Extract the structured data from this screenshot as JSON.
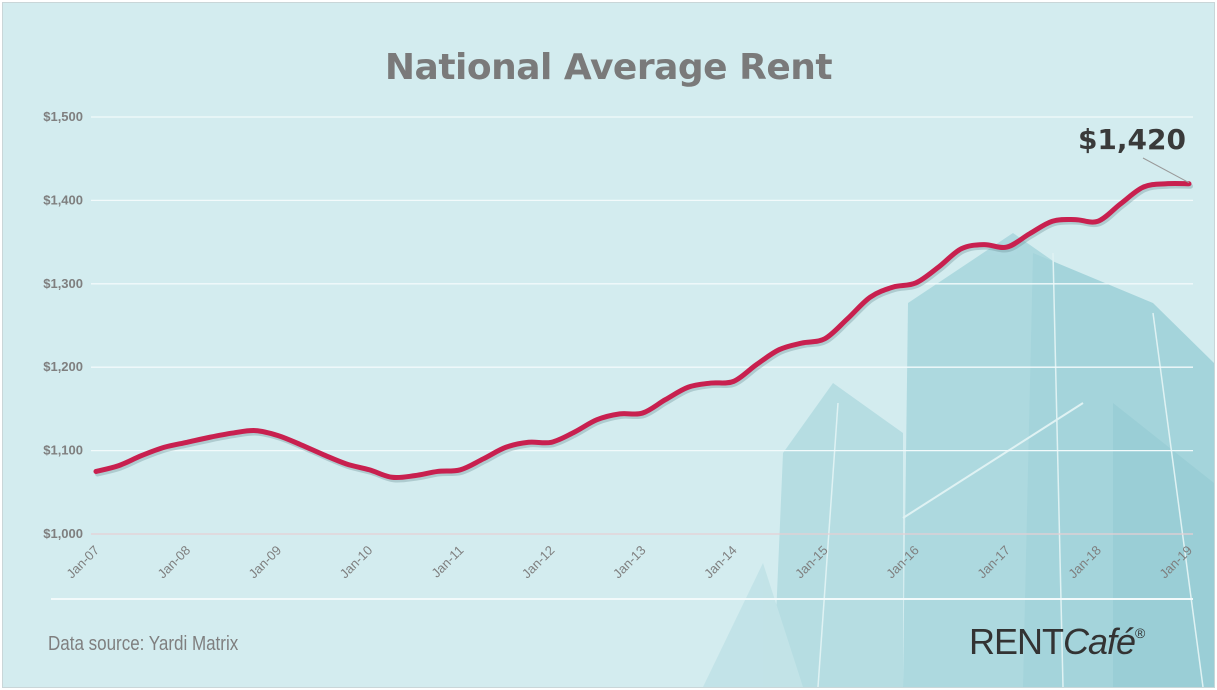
{
  "chart_data": {
    "type": "line",
    "title": "National Average Rent",
    "xlabel": "",
    "ylabel": "",
    "ylim": [
      1000,
      1500
    ],
    "yticks": [
      "$1,000",
      "$1,100",
      "$1,200",
      "$1,300",
      "$1,400",
      "$1,500"
    ],
    "ytick_values": [
      1000,
      1100,
      1200,
      1300,
      1400,
      1500
    ],
    "xticks": [
      "Jan-07",
      "Jan-08",
      "Jan-09",
      "Jan-10",
      "Jan-11",
      "Jan-12",
      "Jan-13",
      "Jan-14",
      "Jan-15",
      "Jan-16",
      "Jan-17",
      "Jan-18",
      "Jan-19"
    ],
    "grid": true,
    "line_color": "#c8204f",
    "x": [
      "Jan-07",
      "Apr-07",
      "Jul-07",
      "Oct-07",
      "Jan-08",
      "Apr-08",
      "Jul-08",
      "Oct-08",
      "Jan-09",
      "Apr-09",
      "Jul-09",
      "Oct-09",
      "Jan-10",
      "Apr-10",
      "Jul-10",
      "Oct-10",
      "Jan-11",
      "Apr-11",
      "Jul-11",
      "Oct-11",
      "Jan-12",
      "Apr-12",
      "Jul-12",
      "Oct-12",
      "Jan-13",
      "Apr-13",
      "Jul-13",
      "Oct-13",
      "Jan-14",
      "Apr-14",
      "Jul-14",
      "Oct-14",
      "Jan-15",
      "Apr-15",
      "Jul-15",
      "Oct-15",
      "Jan-16",
      "Apr-16",
      "Jul-16",
      "Oct-16",
      "Jan-17",
      "Apr-17",
      "Jul-17",
      "Oct-17",
      "Jan-18",
      "Apr-18",
      "Jul-18",
      "Oct-18",
      "Jan-19"
    ],
    "values": [
      1075,
      1082,
      1094,
      1104,
      1110,
      1116,
      1121,
      1124,
      1118,
      1107,
      1095,
      1084,
      1077,
      1068,
      1070,
      1075,
      1077,
      1090,
      1104,
      1110,
      1110,
      1122,
      1137,
      1144,
      1145,
      1161,
      1176,
      1181,
      1183,
      1203,
      1221,
      1229,
      1234,
      1258,
      1284,
      1296,
      1301,
      1320,
      1342,
      1347,
      1344,
      1360,
      1375,
      1377,
      1375,
      1396,
      1416,
      1420,
      1420
    ],
    "annotation": {
      "text": "$1,420",
      "at": "Jan-19"
    }
  },
  "footer": {
    "source": "Data source:  Yardi Matrix",
    "logo": "RENTCafé"
  }
}
